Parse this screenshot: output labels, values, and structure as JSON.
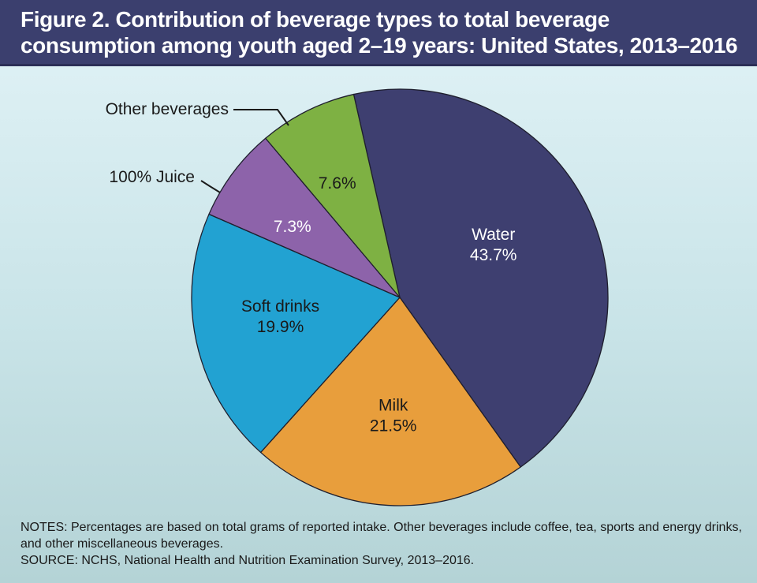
{
  "header": {
    "title": "Figure 2. Contribution of beverage types to total beverage consumption among youth aged 2–19 years: United States, 2013–2016"
  },
  "chart_data": {
    "type": "pie",
    "title": "Figure 2. Contribution of beverage types to total beverage consumption among youth aged 2–19 years: United States, 2013–2016",
    "categories": [
      "Water",
      "Milk",
      "Soft drinks",
      "100% Juice",
      "Other beverages"
    ],
    "values": [
      43.7,
      21.5,
      19.9,
      7.3,
      7.6
    ],
    "value_labels": [
      "43.7%",
      "21.5%",
      "19.9%",
      "7.3%",
      "7.6%"
    ],
    "colors": [
      "#3e3f70",
      "#e89e3c",
      "#22a2d2",
      "#8d63aa",
      "#7eb143"
    ],
    "label_colors": [
      "#ffffff",
      "#1a1a1a",
      "#1a1a1a",
      "#ffffff",
      "#1a1a1a"
    ],
    "callouts": [
      "100% Juice",
      "Other beverages"
    ],
    "start_angle_deg": 0,
    "direction": "clockwise",
    "legend": "none"
  },
  "notes": {
    "notes_text": "NOTES: Percentages are based on total grams of reported intake. Other beverages include coffee, tea, sports and energy drinks, and other miscellaneous beverages.",
    "source_text": "SOURCE: NCHS, National Health and Nutrition Examination Survey, 2013–2016."
  }
}
